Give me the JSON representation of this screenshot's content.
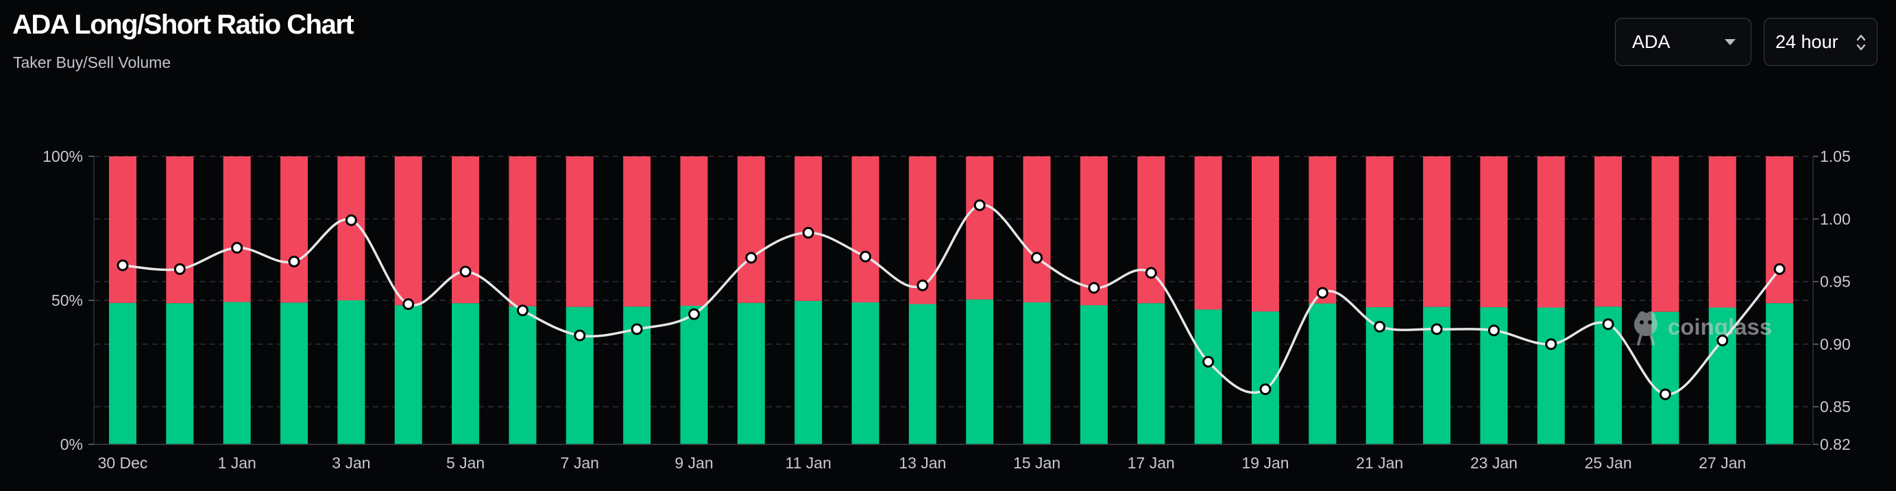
{
  "header": {
    "title": "ADA Long/Short Ratio Chart",
    "subtitle": "Taker Buy/Sell Volume"
  },
  "controls": {
    "symbol": "ADA",
    "period": "24 hour"
  },
  "watermark": "coinglass",
  "colors": {
    "background": "#050608",
    "long": "#00c985",
    "short": "#f2465d",
    "line": "#e6e6e6",
    "grid": "#2f3137",
    "axis_text": "#c8cacf"
  },
  "chart_data": {
    "type": "bar",
    "stacked": true,
    "categories": [
      "30 Dec",
      "31 Dec",
      "1 Jan",
      "2 Jan",
      "3 Jan",
      "4 Jan",
      "5 Jan",
      "6 Jan",
      "7 Jan",
      "8 Jan",
      "9 Jan",
      "10 Jan",
      "11 Jan",
      "12 Jan",
      "13 Jan",
      "14 Jan",
      "15 Jan",
      "16 Jan",
      "17 Jan",
      "18 Jan",
      "19 Jan",
      "20 Jan",
      "21 Jan",
      "22 Jan",
      "23 Jan",
      "24 Jan",
      "25 Jan",
      "26 Jan",
      "27 Jan",
      "28 Jan"
    ],
    "x_tick_labels": [
      "30 Dec",
      "1 Jan",
      "3 Jan",
      "5 Jan",
      "7 Jan",
      "9 Jan",
      "11 Jan",
      "13 Jan",
      "15 Jan",
      "17 Jan",
      "19 Jan",
      "21 Jan",
      "23 Jan",
      "25 Jan",
      "27 Jan"
    ],
    "series": [
      {
        "name": "Long",
        "values": [
          49.1,
          49.0,
          49.4,
          49.2,
          50.0,
          48.3,
          49.0,
          47.9,
          47.7,
          47.8,
          48.1,
          49.1,
          49.8,
          49.3,
          48.7,
          50.3,
          49.3,
          48.3,
          49.0,
          46.8,
          46.1,
          48.9,
          47.6,
          47.7,
          47.6,
          47.5,
          47.8,
          46.0,
          47.5,
          49.0
        ]
      },
      {
        "name": "Short",
        "values": [
          50.9,
          51.0,
          50.6,
          50.8,
          50.0,
          51.7,
          51.0,
          52.1,
          52.3,
          52.2,
          51.9,
          50.9,
          50.2,
          50.7,
          51.3,
          49.7,
          50.7,
          51.7,
          51.0,
          53.2,
          53.9,
          51.1,
          52.4,
          52.3,
          52.4,
          52.5,
          52.2,
          54.0,
          52.5,
          51.0
        ]
      },
      {
        "name": "Long/Short Ratio",
        "axis": "right",
        "values": [
          0.963,
          0.96,
          0.977,
          0.966,
          0.999,
          0.932,
          0.958,
          0.927,
          0.907,
          0.912,
          0.924,
          0.969,
          0.989,
          0.97,
          0.947,
          1.011,
          0.969,
          0.945,
          0.957,
          0.886,
          0.864,
          0.941,
          0.914,
          0.912,
          0.911,
          0.9,
          0.916,
          0.86,
          0.903,
          0.96
        ]
      }
    ],
    "y_left": {
      "ticks": [
        "0%",
        "50%",
        "100%"
      ],
      "range": [
        0,
        100
      ]
    },
    "y_right": {
      "ticks": [
        "0.82",
        "0.85",
        "0.90",
        "0.95",
        "1.00",
        "1.05"
      ],
      "range": [
        0.82,
        1.05
      ]
    },
    "grid": true
  }
}
